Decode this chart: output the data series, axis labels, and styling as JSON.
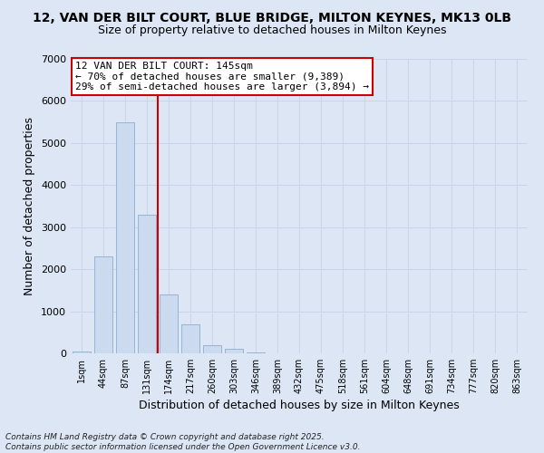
{
  "title_line1": "12, VAN DER BILT COURT, BLUE BRIDGE, MILTON KEYNES, MK13 0LB",
  "title_line2": "Size of property relative to detached houses in Milton Keynes",
  "xlabel": "Distribution of detached houses by size in Milton Keynes",
  "ylabel": "Number of detached properties",
  "footer_line1": "Contains HM Land Registry data © Crown copyright and database right 2025.",
  "footer_line2": "Contains public sector information licensed under the Open Government Licence v3.0.",
  "bar_labels": [
    "1sqm",
    "44sqm",
    "87sqm",
    "131sqm",
    "174sqm",
    "217sqm",
    "260sqm",
    "303sqm",
    "346sqm",
    "389sqm",
    "432sqm",
    "475sqm",
    "518sqm",
    "561sqm",
    "604sqm",
    "648sqm",
    "691sqm",
    "734sqm",
    "777sqm",
    "820sqm",
    "863sqm"
  ],
  "bar_values": [
    50,
    2300,
    5500,
    3300,
    1400,
    700,
    200,
    100,
    30,
    10,
    5,
    3,
    2,
    1,
    1,
    0,
    0,
    0,
    0,
    0,
    0
  ],
  "bar_color": "#ccdaf0",
  "bar_edge_color": "#7ca3cc",
  "grid_color": "#c8d4e8",
  "background_color": "#dce6f5",
  "property_line_x": 3.5,
  "annotation_text": "12 VAN DER BILT COURT: 145sqm\n← 70% of detached houses are smaller (9,389)\n29% of semi-detached houses are larger (3,894) →",
  "annotation_box_color": "#ffffff",
  "annotation_box_edge": "#cc0000",
  "vline_color": "#cc0000",
  "ylim": [
    0,
    7000
  ],
  "yticks": [
    0,
    1000,
    2000,
    3000,
    4000,
    5000,
    6000,
    7000
  ]
}
